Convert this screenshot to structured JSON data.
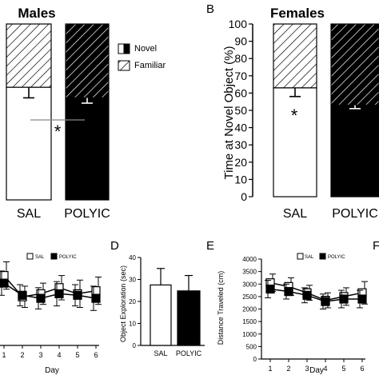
{
  "panel_letters": {
    "b": "B",
    "d": "D",
    "e": "E",
    "f": "F"
  },
  "legend_a": {
    "novel": "Novel",
    "familiar": "Familiar"
  },
  "legend_small": {
    "sal": "SAL",
    "polyic": "POLYIC"
  },
  "significance_marker": "*",
  "colors": {
    "sal": "#ffffff",
    "polyic": "#000000",
    "line": "#888888"
  },
  "chart_data": [
    {
      "id": "A",
      "type": "bar",
      "title": "Males",
      "categories": [
        "SAL",
        "POLYIC"
      ],
      "stacked": true,
      "series": [
        {
          "name": "Novel",
          "values": [
            64,
            58
          ],
          "err": [
            6,
            3
          ]
        },
        {
          "name": "Familiar",
          "values": [
            36,
            42
          ]
        }
      ],
      "ylim": [
        0,
        100
      ]
    },
    {
      "id": "B",
      "type": "bar",
      "title": "Females",
      "categories": [
        "SAL",
        "POLYIC"
      ],
      "stacked": true,
      "series": [
        {
          "name": "Novel",
          "values": [
            63,
            53
          ],
          "err": [
            5,
            2
          ]
        },
        {
          "name": "Familiar",
          "values": [
            37,
            47
          ]
        }
      ],
      "ylim": [
        0,
        100
      ],
      "yticks": [
        "0",
        "10",
        "20",
        "30",
        "40",
        "50",
        "60",
        "70",
        "80",
        "90",
        "100"
      ],
      "ylabel": "Time at Novel Object (%)"
    },
    {
      "id": "C",
      "type": "line",
      "x": [
        1,
        2,
        3,
        4,
        5,
        6
      ],
      "xticks": [
        "1",
        "2",
        "3",
        "4",
        "5",
        "6"
      ],
      "xlabel": "Day",
      "series": [
        {
          "name": "SAL",
          "values": [
            3300,
            2600,
            2700,
            2900,
            2700,
            2800
          ],
          "err": [
            450,
            350,
            350,
            400,
            450,
            450
          ]
        },
        {
          "name": "POLYIC",
          "values": [
            3050,
            2650,
            2550,
            2700,
            2650,
            2550
          ],
          "err": [
            400,
            350,
            350,
            400,
            350,
            400
          ]
        }
      ],
      "ylim": [
        1000,
        4000
      ]
    },
    {
      "id": "D",
      "type": "bar",
      "categories": [
        "SAL",
        "POLYIC"
      ],
      "series": [
        {
          "values": [
            27.5,
            24.8
          ],
          "err": [
            7.5,
            7.0
          ]
        }
      ],
      "ylim": [
        0,
        40
      ],
      "yticks": [
        "0",
        "10",
        "20",
        "30",
        "40"
      ],
      "ylabel": "Object Exploration (sec)"
    },
    {
      "id": "E",
      "type": "line",
      "x": [
        1,
        2,
        3,
        4,
        5,
        6
      ],
      "xticks": [
        "1",
        "2",
        "3",
        "4",
        "5",
        "6"
      ],
      "xlabel": "Day",
      "series": [
        {
          "name": "SAL",
          "values": [
            3050,
            2900,
            2650,
            2350,
            2500,
            2650
          ],
          "err": [
            350,
            350,
            300,
            300,
            350,
            450
          ]
        },
        {
          "name": "POLYIC",
          "values": [
            2800,
            2700,
            2550,
            2300,
            2400,
            2400
          ],
          "err": [
            350,
            300,
            300,
            300,
            350,
            350
          ]
        }
      ],
      "ylim": [
        0,
        4000
      ],
      "yticks": [
        "0",
        "500",
        "1000",
        "1500",
        "2000",
        "2500",
        "3000",
        "3500",
        "4000"
      ],
      "ylabel": "Distance Traveled (cm)"
    }
  ]
}
